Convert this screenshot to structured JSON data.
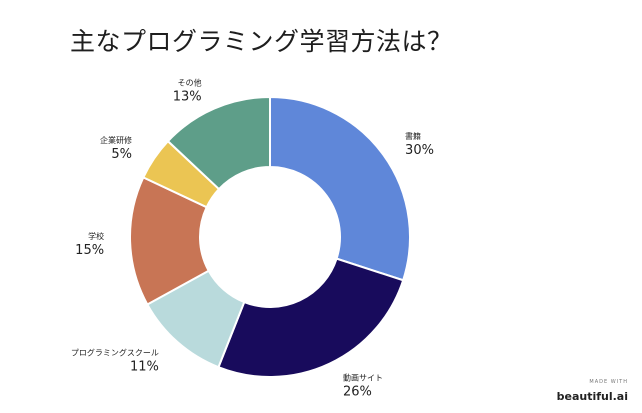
{
  "chart_data": {
    "type": "pie",
    "title": "主なプログラミング学習方法は？",
    "donut": true,
    "slices": [
      {
        "label": "書籍",
        "value": 30,
        "display": "30%",
        "color": "#5f87d9"
      },
      {
        "label": "動画サイト",
        "value": 26,
        "display": "26%",
        "color": "#180b5c"
      },
      {
        "label": "プログラミングスクール",
        "value": 11,
        "display": "11%",
        "color": "#b9dadc"
      },
      {
        "label": "学校",
        "value": 15,
        "display": "15%",
        "color": "#c87555"
      },
      {
        "label": "企業研修",
        "value": 5,
        "display": "5%",
        "color": "#ebc553"
      },
      {
        "label": "その他",
        "value": 13,
        "display": "13%",
        "color": "#5e9e89"
      }
    ]
  },
  "credit": {
    "small": "MADE WITH",
    "brand": "beautiful.ai"
  }
}
